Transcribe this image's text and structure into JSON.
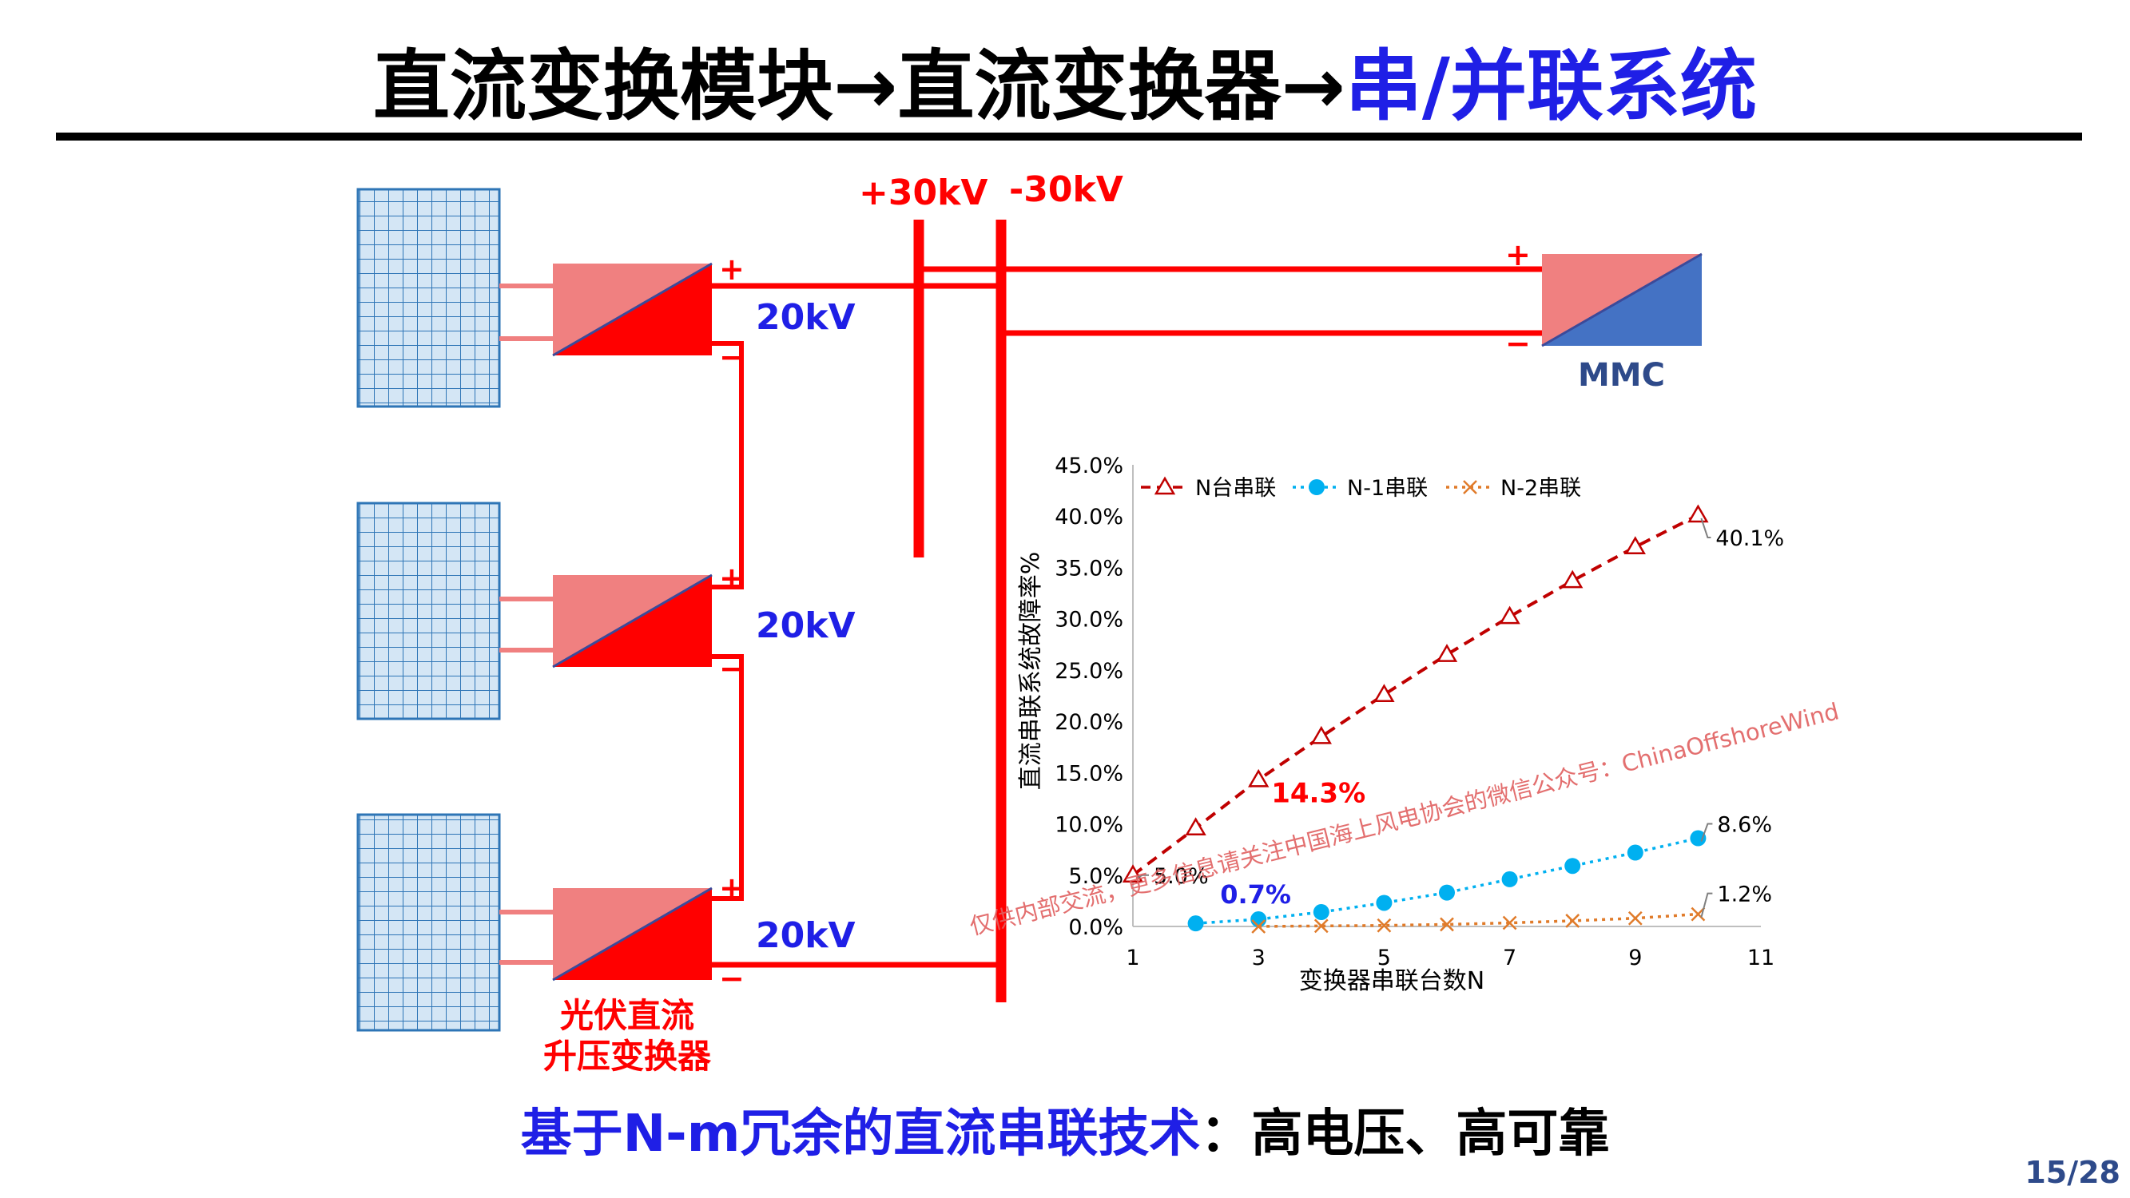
{
  "title": {
    "part1": "直流变换模块→直流变换器→",
    "part2": "串/并联系统"
  },
  "subtitle": {
    "part1": "基于N-m冗余的直流串联技术",
    "part2": "：高电压、高可靠"
  },
  "page_number": "15/28",
  "colors": {
    "red": "#ff0000",
    "pink": "#f08080",
    "blue": "#1f1fe6",
    "pv_fill": "#d4e6f5",
    "pv_line": "#2e75b6",
    "mmc_blue": "#4472c4"
  },
  "diagram": {
    "bus_pos_label": "+30kV",
    "bus_neg_label": "-30kV",
    "module_voltage_1": "20kV",
    "module_voltage_2": "20kV",
    "module_voltage_3": "20kV",
    "plus_sign": "+",
    "minus_sign": "−",
    "mmc_label": "MMC",
    "converter_label_line1": "光伏直流",
    "converter_label_line2": "升压变换器"
  },
  "watermark": "仅供内部交流，更多信息请关注中国海上风电协会的微信公众号：ChinaOffshoreWind",
  "chart_data": {
    "type": "line",
    "xlabel": "变换器串联台数N",
    "ylabel": "直流串联系统故障率%",
    "xlim": [
      1,
      11
    ],
    "ylim": [
      0,
      45
    ],
    "x_ticks": [
      "1",
      "3",
      "5",
      "7",
      "9",
      "11"
    ],
    "y_ticks": [
      "0.0%",
      "5.0%",
      "10.0%",
      "15.0%",
      "20.0%",
      "25.0%",
      "30.0%",
      "35.0%",
      "40.0%",
      "45.0%"
    ],
    "legend_position": "top",
    "series": [
      {
        "name": "N台串联",
        "color": "#c00000",
        "marker": "triangle",
        "dash": "dashed",
        "x": [
          1,
          2,
          3,
          4,
          5,
          6,
          7,
          8,
          9,
          10
        ],
        "y": [
          5.0,
          9.6,
          14.3,
          18.5,
          22.6,
          26.5,
          30.2,
          33.7,
          37.0,
          40.1
        ]
      },
      {
        "name": "N-1串联",
        "color": "#00b0f0",
        "marker": "circle",
        "dash": "dotted",
        "x": [
          2,
          3,
          4,
          5,
          6,
          7,
          8,
          9,
          10
        ],
        "y": [
          0.3,
          0.7,
          1.4,
          2.3,
          3.3,
          4.6,
          5.9,
          7.2,
          8.6
        ]
      },
      {
        "name": "N-2串联",
        "color": "#e07b2a",
        "marker": "x",
        "dash": "dotted",
        "x": [
          3,
          4,
          5,
          6,
          7,
          8,
          9,
          10
        ],
        "y": [
          0.0,
          0.05,
          0.1,
          0.2,
          0.35,
          0.55,
          0.8,
          1.2
        ]
      }
    ],
    "annotations": {
      "n_last": "40.1%",
      "n_first": "5.0%",
      "n1_last": "8.6%",
      "n2_last": "1.2%",
      "highlight_red": "14.3%",
      "highlight_blue": "0.7%"
    }
  }
}
